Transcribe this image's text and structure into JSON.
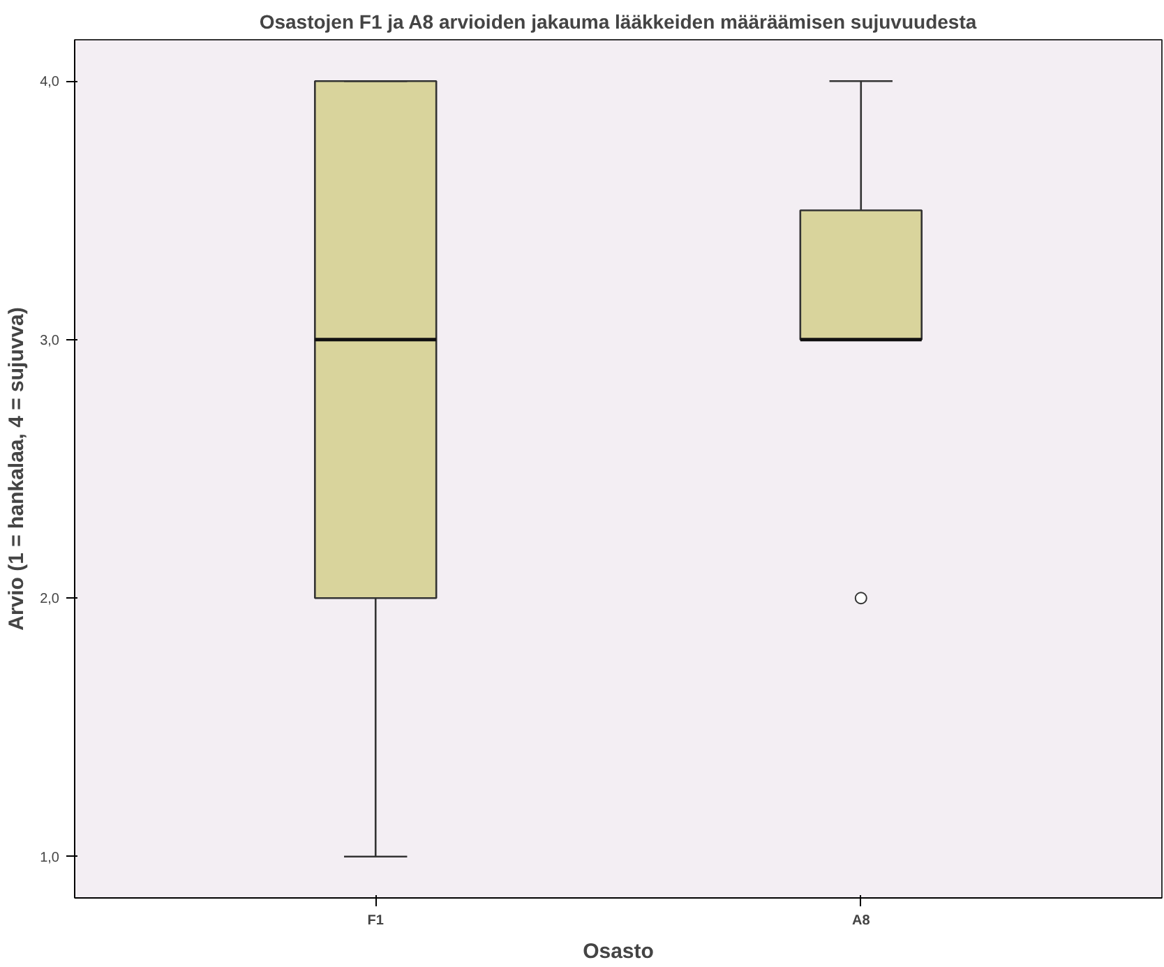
{
  "chart_data": {
    "type": "box",
    "title": "Osastojen F1 ja A8 arvioiden jakauma lääkkeiden määräämisen sujuvuudesta",
    "xlabel": "Osasto",
    "ylabel": "Arvio (1 = hankalaa, 4 = sujuvva)",
    "categories": [
      "F1",
      "A8"
    ],
    "series": [
      {
        "color": "#d9d49c",
        "boxes": [
          {
            "low": 1,
            "q1": 2,
            "median": 3,
            "q3": 4,
            "high": 4
          },
          {
            "low": 3,
            "q1": 3,
            "median": 3,
            "q3": 3.5,
            "high": 4,
            "outliers": [
              2
            ]
          }
        ]
      }
    ],
    "ylim": [
      0.84,
      4.16
    ],
    "yticks": [
      {
        "value": 1,
        "label": "1,0"
      },
      {
        "value": 2,
        "label": "2,0"
      },
      {
        "value": 3,
        "label": "3,0"
      },
      {
        "value": 4,
        "label": "4,0"
      }
    ],
    "grid": false
  }
}
